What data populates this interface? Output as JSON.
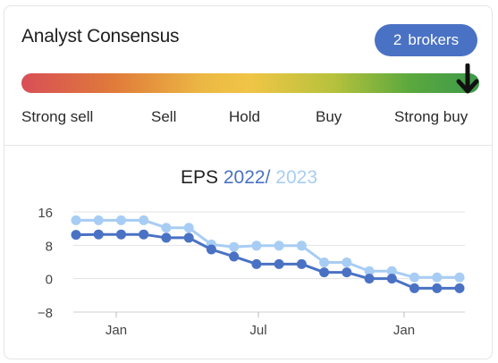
{
  "header": {
    "title": "Analyst Consensus",
    "brokers_count": "2",
    "brokers_label": "brokers"
  },
  "consensus_scale": {
    "labels": [
      "Strong sell",
      "Sell",
      "Hold",
      "Buy",
      "Strong buy"
    ],
    "indicator_position": 1.0,
    "colors": [
      "#d84f57",
      "#e07a3a",
      "#f0c546",
      "#5aa83e",
      "#3e9a4a"
    ],
    "indicator_icon": "arrow-down-icon"
  },
  "chart": {
    "title_prefix": "EPS",
    "title_year1": "2022",
    "title_sep": "/",
    "title_year2": "2023"
  },
  "chart_data": {
    "type": "line",
    "title": "EPS 2022 / 2023",
    "x_tick_labels": [
      "Jan",
      "Jul",
      "Jan"
    ],
    "y_ticks": [
      "16",
      "8",
      "0",
      "−8"
    ],
    "ylim": [
      -8,
      16
    ],
    "grid": true,
    "series": [
      {
        "name": "2022",
        "color": "#4a72c4",
        "values": [
          10.5,
          10.6,
          10.6,
          10.6,
          9.8,
          9.8,
          7.0,
          5.3,
          3.5,
          3.5,
          3.5,
          1.5,
          1.5,
          0.0,
          0.0,
          -2.3,
          -2.3,
          -2.3
        ]
      },
      {
        "name": "2023",
        "color": "#a8cdf4",
        "values": [
          14.0,
          14.0,
          14.0,
          14.0,
          12.2,
          12.2,
          8.2,
          7.6,
          7.9,
          7.9,
          7.9,
          3.9,
          3.9,
          1.8,
          1.8,
          0.3,
          0.3,
          0.3
        ]
      }
    ]
  }
}
